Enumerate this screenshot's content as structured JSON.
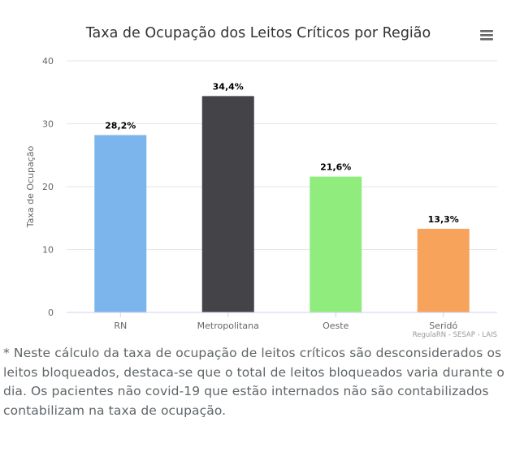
{
  "chart_data": {
    "type": "bar",
    "title": "Taxa de Ocupação dos Leitos Críticos por Região",
    "ylabel": "Taxa de Ocupação",
    "xlabel": "",
    "categories": [
      "RN",
      "Metropolitana",
      "Oeste",
      "Seridó"
    ],
    "values": [
      28.2,
      34.4,
      21.6,
      13.3
    ],
    "data_labels": [
      "28,2%",
      "34,4%",
      "21,6%",
      "13,3%"
    ],
    "colors": [
      "#7cb5ec",
      "#434348",
      "#90ed7d",
      "#f7a35c"
    ],
    "ylim": [
      0,
      40
    ],
    "yticks": [
      0,
      10,
      20,
      30,
      40
    ],
    "grid": true,
    "legend": "none",
    "credits": "RegulaRN - SESAP - LAIS"
  },
  "menu": {
    "icon": "hamburger-menu-icon"
  },
  "footnote": "* Neste cálculo da taxa de ocupação de leitos críticos são desconsiderados os leitos bloqueados, destaca-se que o total de leitos bloqueados varia durante o dia. Os pacientes não covid-19 que estão internados não são contabilizados contabilizam na taxa de ocupação."
}
